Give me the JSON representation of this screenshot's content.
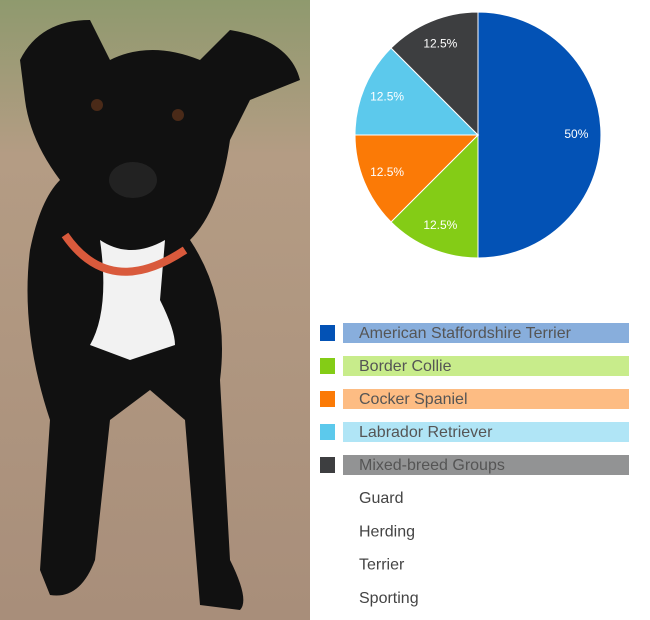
{
  "chart_data": {
    "type": "pie",
    "categories": [
      "American Staffordshire Terrier",
      "Border Collie",
      "Cocker Spaniel",
      "Labrador Retriever",
      "Mixed-breed Groups"
    ],
    "values": [
      50,
      12.5,
      12.5,
      12.5,
      12.5
    ],
    "value_labels": [
      "50%",
      "12.5%",
      "12.5%",
      "12.5%",
      "12.5%"
    ],
    "colors": [
      "#0352b5",
      "#84cc16",
      "#fb7a06",
      "#5cc9ec",
      "#3d3e40"
    ],
    "legend_colors": [
      "#88aedc",
      "#c8ec8b",
      "#fdbc83",
      "#b0e5f6",
      "#929394"
    ]
  },
  "breed_groups": [
    "Guard",
    "Herding",
    "Terrier",
    "Sporting"
  ]
}
